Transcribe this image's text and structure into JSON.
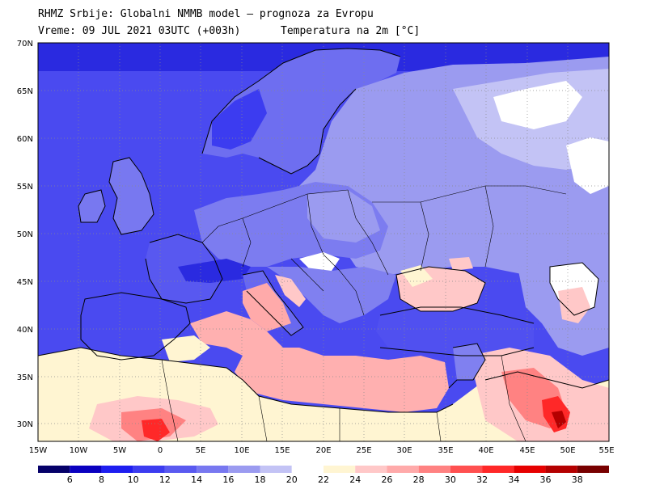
{
  "header": {
    "line1": "RHMZ Srbije: Globalni NMMB model — prognoza za Evropu",
    "line2": "Vreme: 09 JUL 2021 03UTC (+003h)",
    "param": "Temperatura na 2m [°C]"
  },
  "axes": {
    "lat_labels": [
      "70N",
      "65N",
      "60N",
      "55N",
      "50N",
      "45N",
      "40N",
      "35N",
      "30N"
    ],
    "lon_labels": [
      "15W",
      "10W",
      "5W",
      "0",
      "5E",
      "10E",
      "15E",
      "20E",
      "25E",
      "30E",
      "35E",
      "40E",
      "45E",
      "50E",
      "55E"
    ]
  },
  "colorbar": {
    "colors": [
      "#050069",
      "#0a00c0",
      "#1e1ef0",
      "#3c3cf0",
      "#5a5af0",
      "#7878f0",
      "#9b9bf0",
      "#c3c3f5",
      "#ffffff",
      "#fff5d2",
      "#ffc8c8",
      "#ffaaaa",
      "#ff8282",
      "#ff5050",
      "#ff2828",
      "#e60000",
      "#b40000",
      "#780000"
    ],
    "labels": [
      "6",
      "8",
      "10",
      "12",
      "14",
      "16",
      "18",
      "20",
      "22",
      "24",
      "26",
      "28",
      "30",
      "32",
      "34",
      "36",
      "38"
    ]
  },
  "colors": {
    "ocean": "#3c3ce6",
    "cold_land": "#7878f0",
    "mild_land": "#9b9bf0",
    "cool_pale": "#c3c3f5",
    "neutral": "#ffffff",
    "warm_pale": "#fff5d2",
    "warm": "#ffc8c8",
    "hot": "#ff8282",
    "very_hot": "#ff2828",
    "border": "#000000",
    "grid": "#808080"
  }
}
